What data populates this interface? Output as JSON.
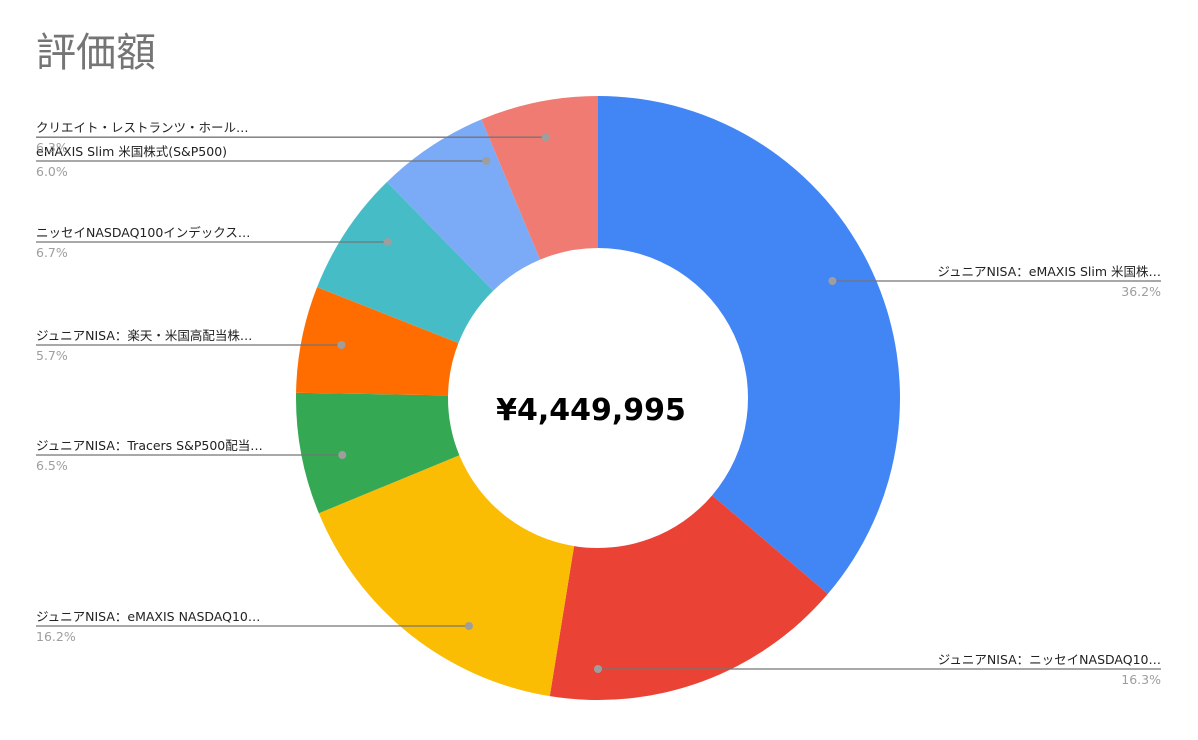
{
  "chart_data": {
    "type": "pie",
    "donut": true,
    "title": "評価額",
    "center_label": "¥4,449,995",
    "slices": [
      {
        "label": "ジュニアNISA：eMAXIS Slim 米国株…",
        "percent_label": "36.2%",
        "value": 36.2,
        "color": "#4285f4"
      },
      {
        "label": "ジュニアNISA：ニッセイNASDAQ10…",
        "percent_label": "16.3%",
        "value": 16.3,
        "color": "#ea4335"
      },
      {
        "label": "ジュニアNISA：eMAXIS NASDAQ10…",
        "percent_label": "16.2%",
        "value": 16.2,
        "color": "#fbbc04"
      },
      {
        "label": "ジュニアNISA：Tracers S&P500配当…",
        "percent_label": "6.5%",
        "value": 6.5,
        "color": "#34a853"
      },
      {
        "label": "ジュニアNISA：楽天・米国高配当株…",
        "percent_label": "5.7%",
        "value": 5.7,
        "color": "#ff6d01"
      },
      {
        "label": "ニッセイNASDAQ100インデックス…",
        "percent_label": "6.7%",
        "value": 6.7,
        "color": "#46bdc6"
      },
      {
        "label": "eMAXIS Slim 米国株式(S&P500)",
        "percent_label": "6.0%",
        "value": 6.0,
        "color": "#7baaf7"
      },
      {
        "label": "クリエイト・レストランツ・ホール…",
        "percent_label": "6.3%",
        "value": 6.3,
        "color": "#f07b72"
      }
    ]
  }
}
